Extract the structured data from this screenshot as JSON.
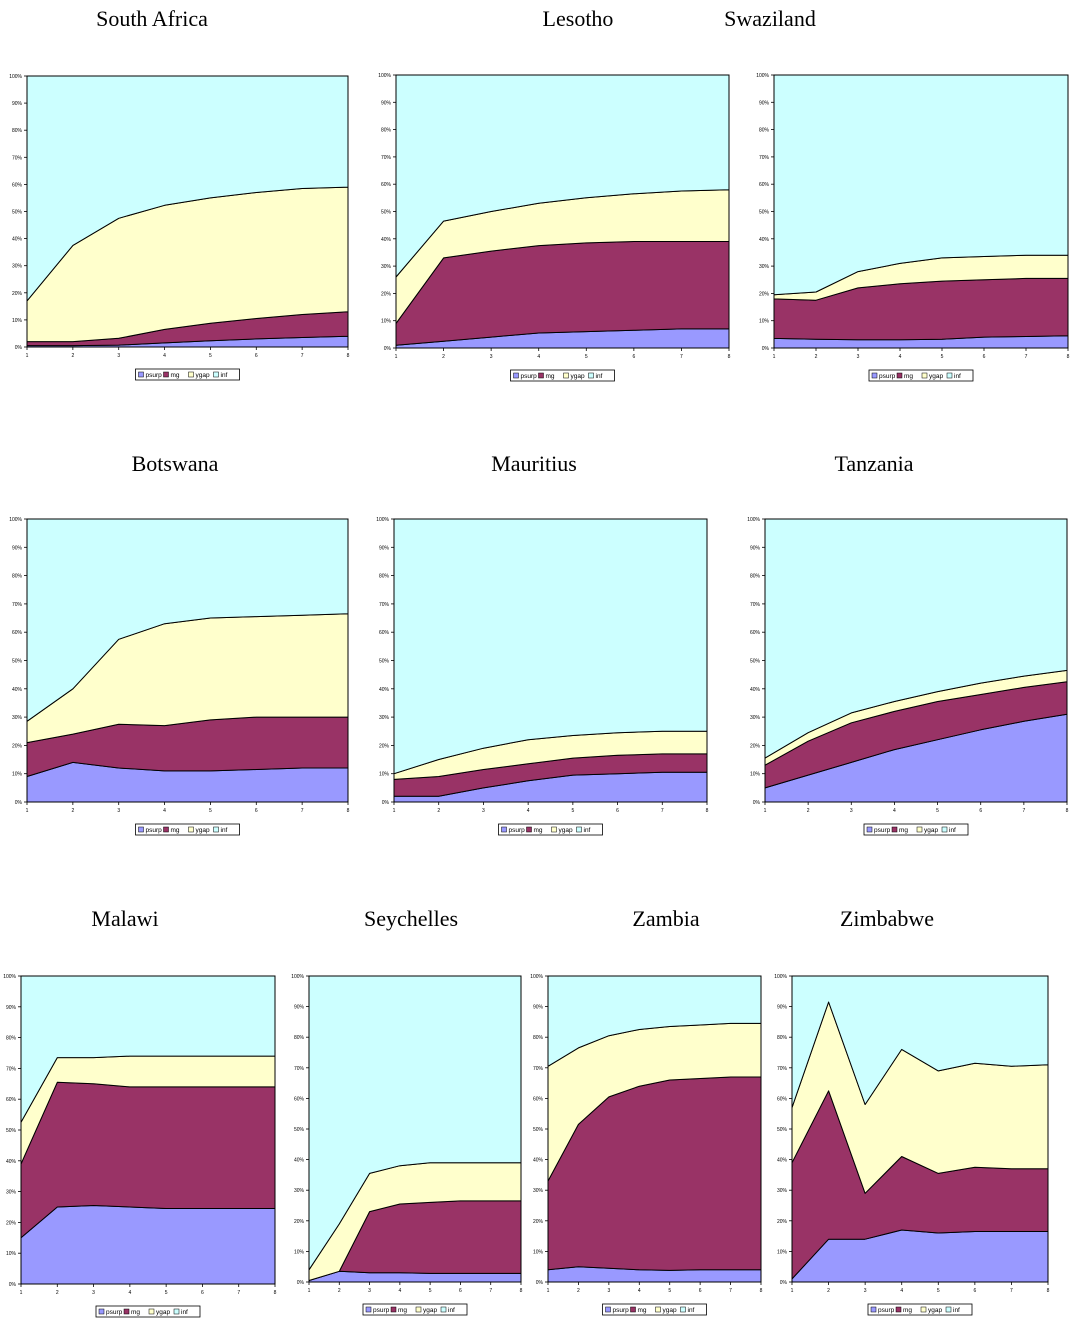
{
  "titles": {
    "south_africa": "South Africa",
    "lesotho": "Lesotho",
    "swaziland": "Swaziland",
    "botswana": "Botswana",
    "mauritius": "Mauritius",
    "tanzania": "Tanzania",
    "malawi": "Malawi",
    "seychelles": "Seychelles",
    "zambia": "Zambia",
    "zimbabwe": "Zimbabwe"
  },
  "colors": {
    "psurp": "#9999ff",
    "mg": "#993366",
    "ygap": "#ffffcc",
    "inf": "#ccffff",
    "outline": "#000000"
  },
  "chart_data": [
    {
      "id": "south_africa",
      "type": "area",
      "stacked": "percent",
      "x": [
        1,
        2,
        3,
        4,
        5,
        6,
        7,
        8
      ],
      "y_ticks": [
        "0%",
        "10%",
        "20%",
        "30%",
        "40%",
        "50%",
        "60%",
        "70%",
        "80%",
        "90%",
        "100%"
      ],
      "ylim": [
        0,
        100
      ],
      "legend": "bottom",
      "series": [
        {
          "name": "psurp",
          "values": [
            0.5,
            0.5,
            0.7,
            1.5,
            2.3,
            3.0,
            3.5,
            4.0
          ]
        },
        {
          "name": "mg",
          "values": [
            1.5,
            1.5,
            2.5,
            5.0,
            6.5,
            7.5,
            8.5,
            9.0
          ]
        },
        {
          "name": "ygap",
          "values": [
            15.0,
            35.5,
            44.3,
            45.8,
            46.2,
            46.5,
            46.5,
            46.0
          ]
        },
        {
          "name": "inf",
          "values": [
            83.0,
            62.5,
            52.5,
            47.7,
            45.0,
            43.0,
            41.5,
            41.0
          ]
        }
      ]
    },
    {
      "id": "lesotho",
      "type": "area",
      "stacked": "percent",
      "x": [
        1,
        2,
        3,
        4,
        5,
        6,
        7,
        8
      ],
      "y_ticks": [
        "0%",
        "10%",
        "20%",
        "30%",
        "40%",
        "50%",
        "60%",
        "70%",
        "80%",
        "90%",
        "100%"
      ],
      "ylim": [
        0,
        100
      ],
      "legend": "bottom",
      "series": [
        {
          "name": "psurp",
          "values": [
            1.0,
            2.5,
            4.0,
            5.5,
            6.0,
            6.5,
            7.0,
            7.0
          ]
        },
        {
          "name": "mg",
          "values": [
            8.0,
            30.5,
            31.5,
            32.0,
            32.5,
            32.5,
            32.0,
            32.0
          ]
        },
        {
          "name": "ygap",
          "values": [
            17.0,
            13.5,
            14.5,
            15.5,
            16.5,
            17.5,
            18.5,
            19.0
          ]
        },
        {
          "name": "inf",
          "values": [
            74.0,
            53.5,
            50.0,
            47.0,
            45.0,
            43.5,
            42.5,
            42.0
          ]
        }
      ]
    },
    {
      "id": "swaziland",
      "type": "area",
      "stacked": "percent",
      "x": [
        1,
        2,
        3,
        4,
        5,
        6,
        7,
        8
      ],
      "y_ticks": [
        "0%",
        "10%",
        "20%",
        "30%",
        "40%",
        "50%",
        "60%",
        "70%",
        "80%",
        "90%",
        "100%"
      ],
      "ylim": [
        0,
        100
      ],
      "legend": "bottom",
      "series": [
        {
          "name": "psurp",
          "values": [
            3.5,
            3.2,
            3.0,
            3.0,
            3.2,
            4.0,
            4.2,
            4.5
          ]
        },
        {
          "name": "mg",
          "values": [
            14.5,
            14.3,
            19.0,
            20.5,
            21.3,
            21.0,
            21.3,
            21.0
          ]
        },
        {
          "name": "ygap",
          "values": [
            1.5,
            3.0,
            6.0,
            7.5,
            8.5,
            8.5,
            8.5,
            8.5
          ]
        },
        {
          "name": "inf",
          "values": [
            80.5,
            79.5,
            72.0,
            69.0,
            67.0,
            66.5,
            66.0,
            66.0
          ]
        }
      ]
    },
    {
      "id": "botswana",
      "type": "area",
      "stacked": "percent",
      "x": [
        1,
        2,
        3,
        4,
        5,
        6,
        7,
        8
      ],
      "y_ticks": [
        "0%",
        "10%",
        "20%",
        "30%",
        "40%",
        "50%",
        "60%",
        "70%",
        "80%",
        "90%",
        "100%"
      ],
      "ylim": [
        0,
        100
      ],
      "legend": "bottom",
      "series": [
        {
          "name": "psurp",
          "values": [
            9.0,
            14.0,
            12.0,
            11.0,
            11.0,
            11.5,
            12.0,
            12.0
          ]
        },
        {
          "name": "mg",
          "values": [
            12.0,
            10.0,
            15.5,
            16.0,
            18.0,
            18.5,
            18.0,
            18.0
          ]
        },
        {
          "name": "ygap",
          "values": [
            7.5,
            16.0,
            30.0,
            36.0,
            36.0,
            35.5,
            36.0,
            36.5
          ]
        },
        {
          "name": "inf",
          "values": [
            71.5,
            60.0,
            42.5,
            37.0,
            35.0,
            34.5,
            34.0,
            33.5
          ]
        }
      ]
    },
    {
      "id": "mauritius",
      "type": "area",
      "stacked": "percent",
      "x": [
        1,
        2,
        3,
        4,
        5,
        6,
        7,
        8
      ],
      "y_ticks": [
        "0%",
        "10%",
        "20%",
        "30%",
        "40%",
        "50%",
        "60%",
        "70%",
        "80%",
        "90%",
        "100%"
      ],
      "ylim": [
        0,
        100
      ],
      "legend": "bottom",
      "series": [
        {
          "name": "psurp",
          "values": [
            2.0,
            2.0,
            5.0,
            7.5,
            9.5,
            10.0,
            10.5,
            10.5
          ]
        },
        {
          "name": "mg",
          "values": [
            6.0,
            7.0,
            6.5,
            6.0,
            6.0,
            6.5,
            6.5,
            6.5
          ]
        },
        {
          "name": "ygap",
          "values": [
            2.0,
            6.0,
            7.5,
            8.5,
            8.0,
            8.0,
            8.0,
            8.0
          ]
        },
        {
          "name": "inf",
          "values": [
            90.0,
            85.0,
            81.0,
            78.0,
            76.5,
            75.5,
            75.0,
            75.0
          ]
        }
      ]
    },
    {
      "id": "tanzania",
      "type": "area",
      "stacked": "percent",
      "x": [
        1,
        2,
        3,
        4,
        5,
        6,
        7,
        8
      ],
      "y_ticks": [
        "0%",
        "10%",
        "20%",
        "30%",
        "40%",
        "50%",
        "60%",
        "70%",
        "80%",
        "90%",
        "100%"
      ],
      "ylim": [
        0,
        100
      ],
      "legend": "bottom",
      "series": [
        {
          "name": "psurp",
          "values": [
            5.0,
            9.5,
            14.0,
            18.5,
            22.0,
            25.5,
            28.5,
            31.0
          ]
        },
        {
          "name": "mg",
          "values": [
            8.0,
            12.0,
            14.0,
            13.5,
            13.5,
            12.5,
            12.0,
            11.5
          ]
        },
        {
          "name": "ygap",
          "values": [
            2.5,
            3.0,
            3.5,
            3.5,
            3.5,
            4.0,
            4.0,
            4.0
          ]
        },
        {
          "name": "inf",
          "values": [
            84.5,
            75.5,
            68.5,
            64.5,
            61.0,
            58.0,
            55.5,
            53.5
          ]
        }
      ]
    },
    {
      "id": "malawi",
      "type": "area",
      "stacked": "percent",
      "x": [
        1,
        2,
        3,
        4,
        5,
        6,
        7,
        8
      ],
      "y_ticks": [
        "0%",
        "10%",
        "20%",
        "30%",
        "40%",
        "50%",
        "60%",
        "70%",
        "80%",
        "90%",
        "100%"
      ],
      "ylim": [
        0,
        100
      ],
      "legend": "bottom",
      "series": [
        {
          "name": "psurp",
          "values": [
            15.0,
            25.0,
            25.5,
            25.0,
            24.5,
            24.5,
            24.5,
            24.5
          ]
        },
        {
          "name": "mg",
          "values": [
            24.0,
            40.5,
            39.5,
            39.0,
            39.5,
            39.5,
            39.5,
            39.5
          ]
        },
        {
          "name": "ygap",
          "values": [
            13.5,
            8.0,
            8.5,
            10.0,
            10.0,
            10.0,
            10.0,
            10.0
          ]
        },
        {
          "name": "inf",
          "values": [
            47.5,
            26.5,
            26.5,
            26.0,
            26.0,
            26.0,
            26.0,
            26.0
          ]
        }
      ]
    },
    {
      "id": "seychelles",
      "type": "area",
      "stacked": "percent",
      "x": [
        1,
        2,
        3,
        4,
        5,
        6,
        7,
        8
      ],
      "y_ticks": [
        "0%",
        "10%",
        "20%",
        "30%",
        "40%",
        "50%",
        "60%",
        "70%",
        "80%",
        "90%",
        "100%"
      ],
      "ylim": [
        0,
        100
      ],
      "legend": "bottom",
      "series": [
        {
          "name": "psurp",
          "values": [
            0.5,
            3.5,
            3.0,
            3.0,
            2.8,
            2.8,
            2.8,
            2.8
          ]
        },
        {
          "name": "mg",
          "values": [
            0.0,
            0.0,
            20.0,
            22.5,
            23.2,
            23.7,
            23.7,
            23.7
          ]
        },
        {
          "name": "ygap",
          "values": [
            3.5,
            15.5,
            12.5,
            12.5,
            13.0,
            12.5,
            12.5,
            12.5
          ]
        },
        {
          "name": "inf",
          "values": [
            96.0,
            81.0,
            64.5,
            62.0,
            61.0,
            61.0,
            61.0,
            61.0
          ]
        }
      ]
    },
    {
      "id": "zambia",
      "type": "area",
      "stacked": "percent",
      "x": [
        1,
        2,
        3,
        4,
        5,
        6,
        7,
        8
      ],
      "y_ticks": [
        "0%",
        "10%",
        "20%",
        "30%",
        "40%",
        "50%",
        "60%",
        "70%",
        "80%",
        "90%",
        "100%"
      ],
      "ylim": [
        0,
        100
      ],
      "legend": "bottom",
      "series": [
        {
          "name": "psurp",
          "values": [
            4.0,
            5.0,
            4.5,
            4.0,
            3.8,
            4.0,
            4.0,
            4.0
          ]
        },
        {
          "name": "mg",
          "values": [
            29.0,
            46.5,
            56.0,
            60.0,
            62.2,
            62.5,
            63.0,
            63.0
          ]
        },
        {
          "name": "ygap",
          "values": [
            37.5,
            25.0,
            20.0,
            18.5,
            17.5,
            17.5,
            17.5,
            17.5
          ]
        },
        {
          "name": "inf",
          "values": [
            29.5,
            23.5,
            19.5,
            17.5,
            16.5,
            16.0,
            15.5,
            15.5
          ]
        }
      ]
    },
    {
      "id": "zimbabwe",
      "type": "area",
      "stacked": "percent",
      "x": [
        1,
        2,
        3,
        4,
        5,
        6,
        7,
        8
      ],
      "y_ticks": [
        "0%",
        "10%",
        "20%",
        "30%",
        "40%",
        "50%",
        "60%",
        "70%",
        "80%",
        "90%",
        "100%"
      ],
      "ylim": [
        0,
        100
      ],
      "legend": "bottom",
      "series": [
        {
          "name": "psurp",
          "values": [
            1.0,
            14.0,
            14.0,
            17.0,
            16.0,
            16.5,
            16.5,
            16.5
          ]
        },
        {
          "name": "mg",
          "values": [
            38.0,
            48.5,
            15.0,
            24.0,
            19.5,
            21.0,
            20.5,
            20.5
          ]
        },
        {
          "name": "ygap",
          "values": [
            18.0,
            29.0,
            29.0,
            35.0,
            33.5,
            34.0,
            33.5,
            34.0
          ]
        },
        {
          "name": "inf",
          "values": [
            43.0,
            8.5,
            42.0,
            24.0,
            31.0,
            28.5,
            29.5,
            29.0
          ]
        }
      ]
    }
  ]
}
